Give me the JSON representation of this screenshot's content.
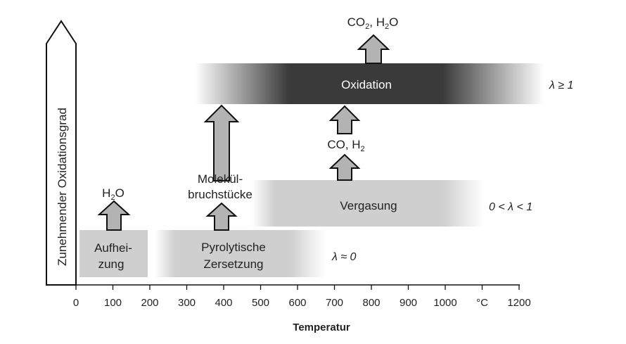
{
  "y_axis": {
    "label": "Zunehmender Oxidationsgrad"
  },
  "x_axis": {
    "title": "Temperatur",
    "ticks": [
      "0",
      "100",
      "200",
      "300",
      "400",
      "500",
      "600",
      "700",
      "800",
      "900",
      "1000",
      "°C",
      "1200"
    ]
  },
  "stages": {
    "heating": {
      "line1": "Aufhei-",
      "line2": "zung"
    },
    "pyrolysis": {
      "line1": "Pyrolytische",
      "line2": "Zersetzung"
    },
    "gasification": {
      "label": "Vergasung"
    },
    "oxidation": {
      "label": "Oxidation"
    }
  },
  "products": {
    "h2o": {
      "main": "H",
      "sub": "2",
      "tail": "O"
    },
    "fragments": {
      "line1": "Molekül-",
      "line2": "bruchstücke"
    },
    "co_h2": {
      "pre": "CO, H",
      "sub": "2"
    },
    "co2_h2o": {
      "a": "CO",
      "a_sub": "2",
      "mid": ", H",
      "b_sub": "2",
      "tail": "O"
    }
  },
  "lambda": {
    "low": "λ ≈ 0",
    "mid": "0 < λ < 1",
    "high": "λ ≥ 1"
  }
}
